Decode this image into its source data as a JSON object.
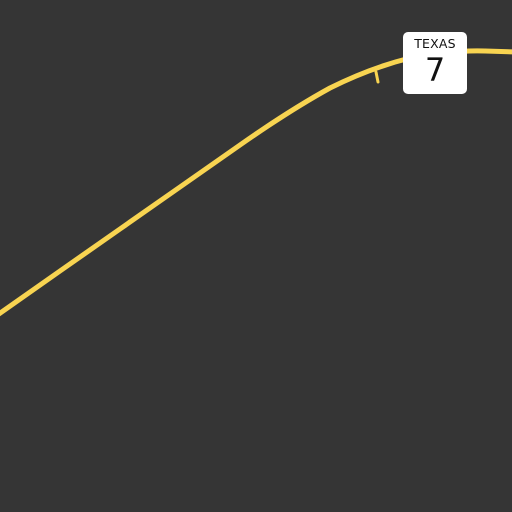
{
  "map": {
    "background_color": "#353535",
    "road_color": "#f8d451",
    "shield": {
      "state": "TEXAS",
      "number": "7",
      "background_color": "#ffffff",
      "text_color": "#111111"
    }
  }
}
